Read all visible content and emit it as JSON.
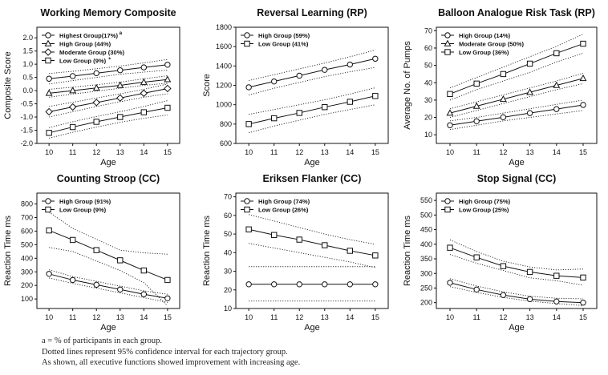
{
  "chart_data": [
    {
      "type": "line",
      "title": "Working Memory Composite",
      "xlabel": "Age",
      "ylabel": "Composite Score",
      "x": [
        10,
        11,
        12,
        13,
        14,
        15
      ],
      "ylim": [
        -2.0,
        2.4
      ],
      "yticks": [
        "2.0",
        "1.5",
        "1.0",
        "0.5",
        "0.0",
        "-0.5",
        "-1.0",
        "-1.5",
        "-2.0"
      ],
      "series": [
        {
          "name": "Highest Group(17%)",
          "marker": "circle",
          "values": [
            0.45,
            0.55,
            0.66,
            0.77,
            0.88,
            0.98
          ],
          "ci_low": [
            0.25,
            0.38,
            0.5,
            0.62,
            0.7,
            0.78
          ],
          "ci_high": [
            0.65,
            0.73,
            0.83,
            0.93,
            1.05,
            1.18
          ]
        },
        {
          "name": "High Group (44%)",
          "marker": "triangle",
          "values": [
            -0.1,
            0.0,
            0.1,
            0.2,
            0.32,
            0.42
          ],
          "ci_low": [
            -0.25,
            -0.13,
            -0.02,
            0.09,
            0.2,
            0.28
          ],
          "ci_high": [
            0.05,
            0.13,
            0.22,
            0.32,
            0.45,
            0.56
          ]
        },
        {
          "name": "Moderate Group (30%)",
          "marker": "diamond",
          "values": [
            -0.8,
            -0.62,
            -0.45,
            -0.28,
            -0.1,
            0.08
          ],
          "ci_low": [
            -1.0,
            -0.8,
            -0.6,
            -0.42,
            -0.25,
            -0.12
          ],
          "ci_high": [
            -0.6,
            -0.44,
            -0.28,
            -0.12,
            0.05,
            0.25
          ]
        },
        {
          "name": "Low Group (9%)",
          "marker": "square",
          "values": [
            -1.6,
            -1.38,
            -1.18,
            -1.0,
            -0.82,
            -0.65
          ],
          "ci_low": [
            -1.8,
            -1.58,
            -1.38,
            -1.2,
            -1.05,
            -0.92
          ],
          "ci_high": [
            -1.4,
            -1.18,
            -0.98,
            -0.8,
            -0.6,
            -0.38
          ]
        }
      ],
      "legend_superscripts": [
        "a",
        "*"
      ],
      "legend": "top-left"
    },
    {
      "type": "line",
      "title": "Reversal Learning (RP)",
      "xlabel": "Age",
      "ylabel": "Score",
      "x": [
        10,
        11,
        12,
        13,
        14,
        15
      ],
      "ylim": [
        600,
        1800
      ],
      "yticks": [
        "1800",
        "1600",
        "1400",
        "1200",
        "1000",
        "800",
        "600"
      ],
      "series": [
        {
          "name": "High Group (59%)",
          "marker": "circle",
          "values": [
            1180,
            1240,
            1300,
            1360,
            1415,
            1475
          ],
          "ci_low": [
            1100,
            1170,
            1230,
            1290,
            1340,
            1385
          ],
          "ci_high": [
            1250,
            1310,
            1370,
            1430,
            1495,
            1565
          ]
        },
        {
          "name": "Low Group (41%)",
          "marker": "square",
          "values": [
            800,
            860,
            915,
            975,
            1030,
            1090
          ],
          "ci_low": [
            710,
            780,
            840,
            900,
            950,
            1000
          ],
          "ci_high": [
            900,
            950,
            1000,
            1050,
            1110,
            1175
          ]
        }
      ],
      "legend": "top-left"
    },
    {
      "type": "line",
      "title": "Balloon Analogue Risk Task (RP)",
      "xlabel": "Age",
      "ylabel": "Average No. of Pumps",
      "x": [
        10,
        11,
        12,
        13,
        14,
        15
      ],
      "ylim": [
        5,
        72
      ],
      "yticks": [
        "70",
        "60",
        "50",
        "40",
        "30",
        "20",
        "10"
      ],
      "series": [
        {
          "name": "High Group (14%)",
          "marker": "circle",
          "values": [
            15.5,
            17.8,
            20.1,
            22.5,
            24.8,
            27.2
          ],
          "ci_low": [
            13,
            15.5,
            18,
            20,
            22,
            24
          ],
          "ci_high": [
            18,
            20,
            22.5,
            25,
            27.5,
            30
          ]
        },
        {
          "name": "Moderate Group (50%)",
          "marker": "triangle",
          "values": [
            22.5,
            26.5,
            30.5,
            34.5,
            38.5,
            42.5
          ],
          "ci_low": [
            20,
            24,
            28,
            32,
            36,
            39.5
          ],
          "ci_high": [
            25,
            29,
            33,
            37,
            41,
            45.5
          ]
        },
        {
          "name": "Low Group (36%)",
          "marker": "square",
          "values": [
            33.5,
            39.5,
            45,
            51,
            57,
            62.5
          ],
          "ci_low": [
            30,
            36,
            41,
            46,
            52,
            57
          ],
          "ci_high": [
            37,
            43,
            49,
            55,
            61,
            68
          ]
        }
      ],
      "legend": "top-left"
    },
    {
      "type": "line",
      "title": "Counting Stroop (CC)",
      "xlabel": "Age",
      "ylabel": "Reaction Time ms",
      "x": [
        10,
        11,
        12,
        13,
        14,
        15
      ],
      "ylim": [
        30,
        880
      ],
      "yticks": [
        "800",
        "700",
        "600",
        "500",
        "400",
        "300",
        "200",
        "100"
      ],
      "series": [
        {
          "name": "High Group (91%)",
          "marker": "circle",
          "values": [
            285,
            240,
            205,
            170,
            135,
            105
          ],
          "ci_low": [
            255,
            215,
            180,
            145,
            110,
            75
          ],
          "ci_high": [
            315,
            265,
            230,
            195,
            160,
            135
          ]
        },
        {
          "name": "Low Group (9%)",
          "marker": "square",
          "values": [
            605,
            535,
            460,
            385,
            310,
            240
          ],
          "ci_low": [
            480,
            450,
            380,
            310,
            220,
            50
          ],
          "ci_high": [
            740,
            620,
            540,
            460,
            440,
            430
          ]
        }
      ],
      "legend": "top-left"
    },
    {
      "type": "line",
      "title": "Eriksen Flanker (CC)",
      "xlabel": "Age",
      "ylabel": "Reaction Time ms",
      "x": [
        10,
        11,
        12,
        13,
        14,
        15
      ],
      "ylim": [
        10,
        72
      ],
      "yticks": [
        "70",
        "60",
        "50",
        "40",
        "30",
        "20",
        "10"
      ],
      "series": [
        {
          "name": "High Group (74%)",
          "marker": "circle",
          "values": [
            23,
            23,
            23,
            23,
            23,
            23
          ],
          "ci_low": [
            14,
            14,
            14,
            14,
            14,
            14
          ],
          "ci_high": [
            32.5,
            32.5,
            32.5,
            32.5,
            32.5,
            32.5
          ]
        },
        {
          "name": "Low Group (26%)",
          "marker": "square",
          "values": [
            52.5,
            49.5,
            47,
            44,
            41,
            38.5
          ],
          "ci_low": [
            45,
            42.5,
            40,
            37.5,
            35,
            32
          ],
          "ci_high": [
            60.5,
            57,
            53.5,
            50,
            47,
            44.5
          ]
        }
      ],
      "legend": "top-left"
    },
    {
      "type": "line",
      "title": "Stop Signal (CC)",
      "xlabel": "Age",
      "ylabel": "Reaction Time ms",
      "x": [
        10,
        11,
        12,
        13,
        14,
        15
      ],
      "ylim": [
        180,
        575
      ],
      "yticks": [
        "550",
        "500",
        "450",
        "400",
        "350",
        "300",
        "250",
        "200"
      ],
      "series": [
        {
          "name": "High Group (75%)",
          "marker": "circle",
          "values": [
            268,
            245,
            226,
            212,
            204,
            200
          ],
          "ci_low": [
            255,
            235,
            218,
            205,
            197,
            190
          ],
          "ci_high": [
            282,
            257,
            237,
            222,
            215,
            213
          ]
        },
        {
          "name": "Low Group (25%)",
          "marker": "square",
          "values": [
            388,
            355,
            325,
            305,
            292,
            286
          ],
          "ci_low": [
            365,
            335,
            310,
            285,
            275,
            260
          ],
          "ci_high": [
            415,
            375,
            342,
            322,
            312,
            315
          ]
        }
      ],
      "legend": "top-left"
    }
  ],
  "footnotes": [
    "a = % of participants in each group.",
    "Dotted lines represent 95% confidence interval for each trajectory group.",
    "As shown, all executive functions showed improvement with increasing age."
  ]
}
